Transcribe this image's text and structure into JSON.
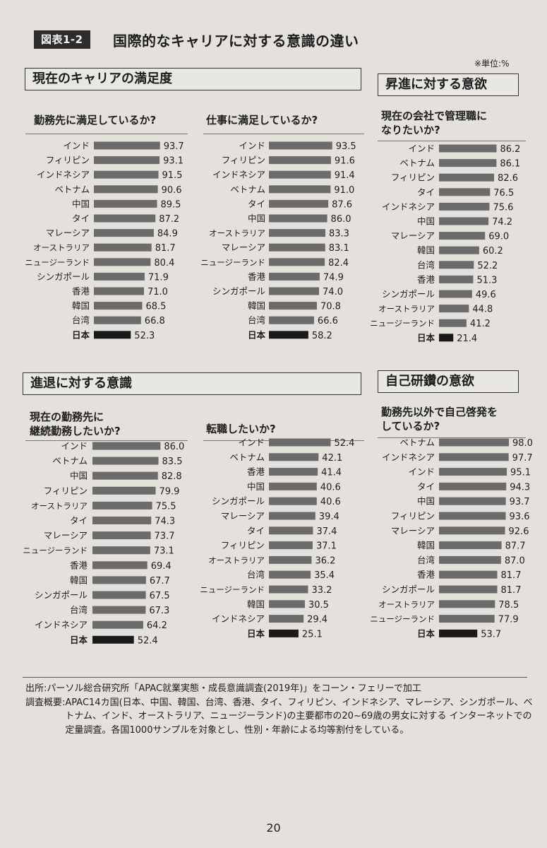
{
  "figure": {
    "badge": "図表1-2",
    "title": "国際的なキャリアに対する意識の違い",
    "unit_note": "※単位:%"
  },
  "sections": {
    "satisfaction": "現在のキャリアの満足度",
    "promotion": "昇進に対する意欲",
    "retirement": "進退に対する意識",
    "selfdev": "自己研鑽の意欲"
  },
  "chart_data": [
    {
      "id": "c1",
      "type": "bar",
      "orientation": "horizontal",
      "title": "勤務先に満足しているか?",
      "categories": [
        "インド",
        "フィリピン",
        "インドネシア",
        "ベトナム",
        "中国",
        "タイ",
        "マレーシア",
        "オーストラリア",
        "ニュージーランド",
        "シンガポール",
        "香港",
        "韓国",
        "台湾",
        "日本"
      ],
      "values": [
        93.7,
        93.1,
        91.5,
        90.6,
        89.5,
        87.2,
        84.9,
        81.7,
        80.4,
        71.9,
        71.0,
        68.5,
        66.8,
        52.3
      ],
      "highlight": "日本",
      "grid": false
    },
    {
      "id": "c2",
      "type": "bar",
      "orientation": "horizontal",
      "title": "仕事に満足しているか?",
      "categories": [
        "インド",
        "フィリピン",
        "インドネシア",
        "ベトナム",
        "タイ",
        "中国",
        "オーストラリア",
        "マレーシア",
        "ニュージーランド",
        "香港",
        "シンガポール",
        "韓国",
        "台湾",
        "日本"
      ],
      "values": [
        93.5,
        91.6,
        91.4,
        91.0,
        87.6,
        86.0,
        83.3,
        83.1,
        82.4,
        74.9,
        74.0,
        70.8,
        66.6,
        58.2
      ],
      "highlight": "日本",
      "grid": false
    },
    {
      "id": "c3",
      "type": "bar",
      "orientation": "horizontal",
      "title": "現在の会社で管理職に\nなりたいか?",
      "categories": [
        "インド",
        "ベトナム",
        "フィリピン",
        "タイ",
        "インドネシア",
        "中国",
        "マレーシア",
        "韓国",
        "台湾",
        "香港",
        "シンガポール",
        "オーストラリア",
        "ニュージーランド",
        "日本"
      ],
      "values": [
        86.2,
        86.1,
        82.6,
        76.5,
        75.6,
        74.2,
        69.0,
        60.2,
        52.2,
        51.3,
        49.6,
        44.8,
        41.2,
        21.4
      ],
      "highlight": "日本",
      "grid": false
    },
    {
      "id": "c4",
      "type": "bar",
      "orientation": "horizontal",
      "title": "現在の勤務先に\n継続勤務したいか?",
      "categories": [
        "インド",
        "ベトナム",
        "中国",
        "フィリピン",
        "オーストラリア",
        "タイ",
        "マレーシア",
        "ニュージーランド",
        "香港",
        "韓国",
        "シンガポール",
        "台湾",
        "インドネシア",
        "日本"
      ],
      "values": [
        86.0,
        83.5,
        82.8,
        79.9,
        75.5,
        74.3,
        73.7,
        73.1,
        69.4,
        67.7,
        67.5,
        67.3,
        64.2,
        52.4
      ],
      "highlight": "日本",
      "grid": false
    },
    {
      "id": "c5",
      "type": "bar",
      "orientation": "horizontal",
      "title": "転職したいか?",
      "categories": [
        "インド",
        "ベトナム",
        "香港",
        "中国",
        "シンガポール",
        "マレーシア",
        "タイ",
        "フィリピン",
        "オーストラリア",
        "台湾",
        "ニュージーランド",
        "韓国",
        "インドネシア",
        "日本"
      ],
      "values": [
        52.4,
        42.1,
        41.4,
        40.6,
        40.6,
        39.4,
        37.4,
        37.1,
        36.2,
        35.4,
        33.2,
        30.5,
        29.4,
        25.1
      ],
      "highlight": "日本",
      "grid": false
    },
    {
      "id": "c6",
      "type": "bar",
      "orientation": "horizontal",
      "title": "勤務先以外で自己啓発を\nしているか?",
      "categories": [
        "ベトナム",
        "インドネシア",
        "インド",
        "タイ",
        "中国",
        "フィリピン",
        "マレーシア",
        "韓国",
        "台湾",
        "香港",
        "シンガポール",
        "オーストラリア",
        "ニュージーランド",
        "日本"
      ],
      "values": [
        98.0,
        97.7,
        95.1,
        94.3,
        93.7,
        93.6,
        92.6,
        87.7,
        87.0,
        81.7,
        81.7,
        78.5,
        77.9,
        53.7
      ],
      "highlight": "日本",
      "grid": false
    }
  ],
  "colors": {
    "bar": "#6b6b6b",
    "bar_highlight": "#1a1a1a",
    "background": "#e4e1dc",
    "text": "#1d1d1d"
  },
  "source": {
    "label1": "出所:",
    "text1": "パーソル総合研究所「APAC就業実態・成長意識調査(2019年)」をコーン・フェリーで加工",
    "label2": "調査概要:",
    "text2": "APAC14カ国(日本、中国、韓国、台湾、香港、タイ、フィリピン、インドネシア、マレーシア、シンガポール、ベトナム、インド、オーストラリア、ニュージーランド)の主要都市の20~69歳の男女に対する インターネットでの定量調査。各国1000サンプルを対象とし、性別・年齢による均等割付をしている。"
  },
  "page_number": "20"
}
